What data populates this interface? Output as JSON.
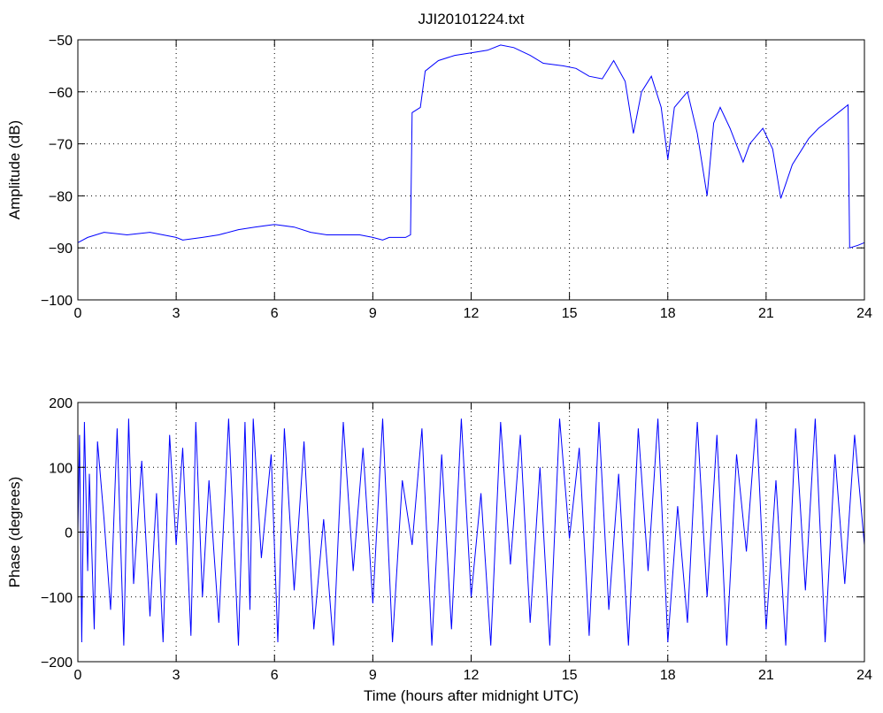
{
  "chart_data": [
    {
      "type": "line",
      "title": "JJI20101224.txt",
      "xlabel": "",
      "ylabel": "Amplitude (dB)",
      "xlim": [
        0,
        24
      ],
      "ylim": [
        -100,
        -50
      ],
      "xticks": [
        0,
        3,
        6,
        9,
        12,
        15,
        18,
        21,
        24
      ],
      "yticks": [
        -50,
        -60,
        -70,
        -80,
        -90,
        -100
      ],
      "grid": true,
      "line_color": "#0000ff",
      "series": [
        {
          "x": [
            0,
            0.3,
            0.8,
            1.5,
            2.2,
            3.0,
            3.2,
            3.8,
            4.3,
            4.9,
            5.4,
            6.0,
            6.6,
            7.1,
            7.6,
            8.2,
            8.6,
            9.0,
            9.3,
            9.5,
            10.0,
            10.15,
            10.2,
            10.45,
            10.6,
            11.0,
            11.5,
            12.0,
            12.5,
            12.9,
            13.3,
            13.8,
            14.2,
            14.8,
            15.2,
            15.6,
            16.0,
            16.35,
            16.7,
            16.95,
            17.2,
            17.5,
            17.8,
            18.0,
            18.2,
            18.6,
            18.9,
            19.2,
            19.4,
            19.6,
            19.9,
            20.3,
            20.5,
            20.9,
            21.2,
            21.45,
            21.8,
            22.3,
            22.6,
            22.8,
            22.9,
            23.2,
            23.5,
            23.55,
            23.8,
            24.0
          ],
          "y": [
            -89,
            -88,
            -87,
            -87.5,
            -87,
            -88,
            -88.5,
            -88,
            -87.5,
            -86.5,
            -86,
            -85.5,
            -86,
            -87,
            -87.5,
            -87.5,
            -87.5,
            -88,
            -88.5,
            -88,
            -88,
            -87.5,
            -64,
            -63,
            -56,
            -54,
            -53,
            -52.5,
            -52,
            -51,
            -51.5,
            -53,
            -54.5,
            -55,
            -55.5,
            -57,
            -57.5,
            -54,
            -58,
            -68,
            -60,
            -57,
            -63,
            -73,
            -63,
            -60,
            -68,
            -80,
            -66,
            -63,
            -67,
            -73.5,
            -70,
            -67,
            -71,
            -80.5,
            -74,
            -69,
            -67,
            -66,
            -65.5,
            -64,
            -62.5,
            -90,
            -89.5,
            -89
          ]
        }
      ],
      "annotations": []
    },
    {
      "type": "line",
      "title": "",
      "xlabel": "Time (hours after midnight UTC)",
      "ylabel": "Phase (degrees)",
      "xlim": [
        0,
        24
      ],
      "ylim": [
        -200,
        200
      ],
      "xticks": [
        0,
        3,
        6,
        9,
        12,
        15,
        18,
        21,
        24
      ],
      "yticks": [
        200,
        100,
        0,
        -100,
        -200
      ],
      "grid": true,
      "line_color": "#0000ff",
      "series": [
        {
          "x": [
            0,
            0.05,
            0.12,
            0.2,
            0.3,
            0.35,
            0.5,
            0.6,
            0.8,
            1.0,
            1.2,
            1.4,
            1.55,
            1.7,
            1.95,
            2.2,
            2.4,
            2.6,
            2.8,
            3.0,
            3.2,
            3.45,
            3.6,
            3.8,
            4.0,
            4.3,
            4.6,
            4.9,
            5.1,
            5.25,
            5.35,
            5.6,
            5.9,
            6.1,
            6.3,
            6.6,
            6.9,
            7.2,
            7.5,
            7.8,
            8.1,
            8.4,
            8.7,
            9.0,
            9.3,
            9.6,
            9.9,
            10.2,
            10.5,
            10.8,
            11.1,
            11.4,
            11.7,
            12.0,
            12.3,
            12.6,
            12.9,
            13.2,
            13.5,
            13.8,
            14.1,
            14.4,
            14.7,
            15.0,
            15.3,
            15.6,
            15.9,
            16.2,
            16.5,
            16.8,
            17.1,
            17.4,
            17.7,
            18.0,
            18.3,
            18.6,
            18.9,
            19.2,
            19.5,
            19.8,
            20.1,
            20.4,
            20.7,
            21.0,
            21.3,
            21.6,
            21.9,
            22.2,
            22.5,
            22.8,
            23.1,
            23.4,
            23.7,
            24.0
          ],
          "y": [
            0,
            150,
            -170,
            170,
            -60,
            90,
            -150,
            140,
            20,
            -120,
            160,
            -175,
            175,
            -80,
            110,
            -130,
            60,
            -170,
            150,
            -20,
            130,
            -160,
            170,
            -100,
            80,
            -140,
            175,
            -175,
            170,
            -120,
            175,
            -40,
            120,
            -170,
            160,
            -90,
            140,
            -150,
            20,
            -175,
            170,
            -60,
            130,
            -110,
            175,
            -170,
            80,
            -20,
            160,
            -175,
            120,
            -150,
            175,
            -100,
            60,
            -175,
            170,
            -50,
            150,
            -140,
            100,
            -175,
            175,
            -10,
            130,
            -160,
            170,
            -120,
            90,
            -175,
            160,
            -60,
            175,
            -170,
            40,
            -140,
            170,
            -100,
            150,
            -175,
            120,
            -30,
            175,
            -150,
            80,
            -175,
            160,
            -90,
            175,
            -170,
            120,
            -80,
            150,
            -20
          ]
        }
      ],
      "annotations": []
    }
  ]
}
